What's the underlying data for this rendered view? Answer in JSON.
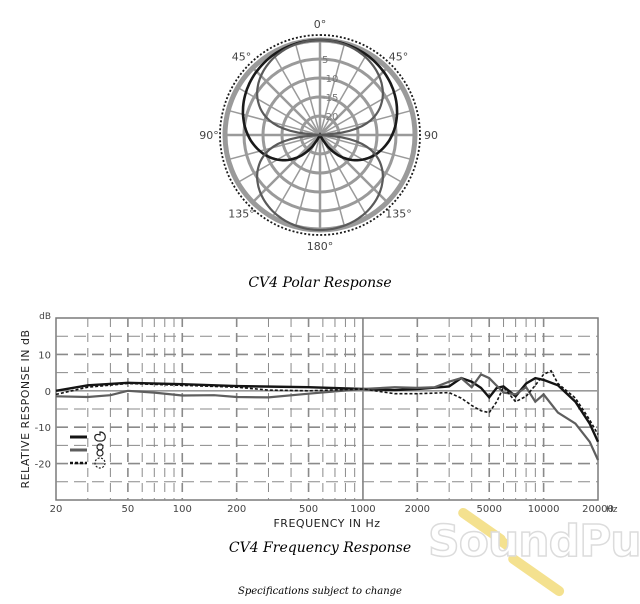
{
  "chart_data": [
    {
      "type": "polar",
      "title": "CV4  Polar Response",
      "angle_labels": [
        {
          "angle": 0,
          "text": "0°"
        },
        {
          "angle": -45,
          "text": "45°"
        },
        {
          "angle": 45,
          "text": "45°"
        },
        {
          "angle": -90,
          "text": "90°"
        },
        {
          "angle": 90,
          "text": "90"
        },
        {
          "angle": -135,
          "text": "135°"
        },
        {
          "angle": 135,
          "text": "135°"
        },
        {
          "angle": 180,
          "text": "180°"
        }
      ],
      "ring_labels": [
        "5",
        "10",
        "15",
        "20"
      ],
      "ring_db": [
        -5,
        -10,
        -15,
        -20
      ],
      "rlim": [
        -25,
        0
      ],
      "patterns": [
        {
          "pattern": "cardioid",
          "style": "solid"
        },
        {
          "pattern": "figure-8",
          "style": "solid-gray"
        },
        {
          "pattern": "omni",
          "style": "dotted"
        }
      ]
    },
    {
      "type": "line",
      "title": "CV4 Frequency Response",
      "xlabel": "FREQUENCY  IN  Hz",
      "ylabel": "RELATIVE RESPONSE  IN  dB",
      "y_unit": "dB",
      "x_unit": "Hz",
      "x_scale": "log",
      "xlim": [
        20,
        20000
      ],
      "ylim": [
        -30,
        20
      ],
      "x_ticks": [
        {
          "v": 20,
          "t": "20"
        },
        {
          "v": 50,
          "t": "50"
        },
        {
          "v": 100,
          "t": "100"
        },
        {
          "v": 200,
          "t": "200"
        },
        {
          "v": 500,
          "t": "500"
        },
        {
          "v": 1000,
          "t": "1000"
        },
        {
          "v": 2000,
          "t": "2000"
        },
        {
          "v": 5000,
          "t": "5000"
        },
        {
          "v": 10000,
          "t": "10000"
        },
        {
          "v": 20000,
          "t": "20000"
        }
      ],
      "y_ticks": [
        {
          "v": 10,
          "t": "10"
        },
        {
          "v": 0,
          "t": "0"
        },
        {
          "v": -10,
          "t": "-10"
        },
        {
          "v": -20,
          "t": "-20"
        }
      ],
      "series": [
        {
          "pattern": "cardioid",
          "style": "solid-black",
          "x": [
            20,
            30,
            50,
            100,
            200,
            500,
            1000,
            1500,
            2000,
            3000,
            3500,
            4000,
            4500,
            5000,
            5500,
            6000,
            7000,
            8000,
            9000,
            10000,
            12000,
            15000,
            18000,
            20000
          ],
          "y": [
            0,
            1.5,
            2.2,
            1.8,
            1.3,
            1,
            0.5,
            0.2,
            0.5,
            1.2,
            3.5,
            2.5,
            0.8,
            -1.8,
            0.8,
            1.2,
            -1.5,
            2,
            3.5,
            3,
            1.5,
            -3,
            -9,
            -14
          ]
        },
        {
          "pattern": "figure-8",
          "style": "solid-gray",
          "x": [
            20,
            30,
            40,
            50,
            70,
            100,
            150,
            200,
            300,
            500,
            1000,
            1500,
            2000,
            2500,
            3000,
            3500,
            4000,
            4500,
            5000,
            6000,
            7000,
            8000,
            9000,
            10000,
            12000,
            15000,
            18000,
            20000
          ],
          "y": [
            -1.5,
            -1.7,
            -1.2,
            0,
            -0.5,
            -1.3,
            -1.2,
            -1.7,
            -1.8,
            -0.8,
            0.5,
            1,
            0.8,
            1,
            2.5,
            3.5,
            1,
            4.5,
            3.5,
            -0.5,
            -1,
            1,
            -3,
            -1,
            -6,
            -9,
            -14,
            -19
          ]
        },
        {
          "pattern": "omni",
          "style": "dotted",
          "x": [
            20,
            30,
            50,
            100,
            200,
            300,
            500,
            1000,
            1500,
            2000,
            3000,
            3500,
            4000,
            4500,
            5000,
            5500,
            6000,
            7000,
            8000,
            9000,
            10000,
            11000,
            12000,
            15000,
            18000,
            20000
          ],
          "y": [
            -1,
            1,
            2,
            1.5,
            1,
            0.2,
            0,
            0.5,
            -0.8,
            -0.8,
            -0.5,
            -2,
            -4,
            -5.5,
            -6,
            -3,
            1,
            -3,
            -1.5,
            1.5,
            4.5,
            5.5,
            2,
            -2,
            -8,
            -12
          ]
        }
      ],
      "legend": "bottom-left",
      "grid": true
    }
  ],
  "footer": {
    "note": "Specifications subject to change"
  },
  "watermark": {
    "brand": "SoundPure"
  }
}
